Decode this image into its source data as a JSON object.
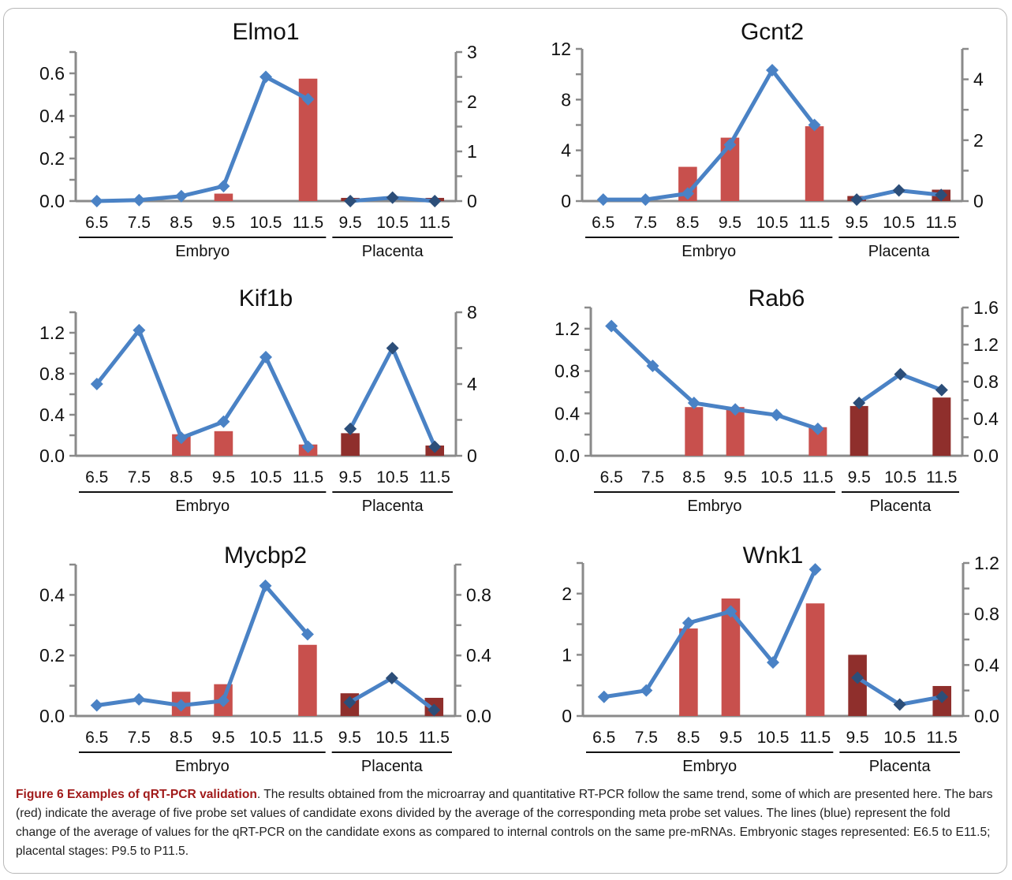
{
  "chart_data": [
    {
      "type": "bar",
      "title": "Elmo1",
      "categories": [
        "6.5",
        "7.5",
        "8.5",
        "9.5",
        "10.5",
        "11.5",
        "9.5",
        "10.5",
        "11.5"
      ],
      "groups": [
        {
          "label": "Embryo",
          "start": 0,
          "end": 5
        },
        {
          "label": "Placenta",
          "start": 6,
          "end": 8
        }
      ],
      "y_left": {
        "ylim": [
          0,
          0.7
        ],
        "ticks": [
          "0.0",
          "0.2",
          "0.4",
          "0.6"
        ],
        "tick_values": [
          0,
          0.2,
          0.4,
          0.6
        ]
      },
      "y_right": {
        "ylim": [
          0,
          3
        ],
        "ticks": [
          "0",
          "1",
          "2",
          "3"
        ],
        "tick_values": [
          0,
          1,
          2,
          3
        ]
      },
      "series": [
        {
          "kind": "bar",
          "axis": "left",
          "values": [
            0,
            0,
            0,
            0.035,
            0,
            0.575,
            0.015,
            0,
            0.015
          ]
        },
        {
          "kind": "line",
          "axis": "right",
          "values": [
            0,
            0.02,
            0.1,
            0.3,
            2.5,
            2.05,
            0,
            0.07,
            0
          ]
        }
      ]
    },
    {
      "type": "bar",
      "title": "Gcnt2",
      "categories": [
        "6.5",
        "7.5",
        "8.5",
        "9.5",
        "10.5",
        "11.5",
        "9.5",
        "10.5",
        "11.5"
      ],
      "groups": [
        {
          "label": "Embryo",
          "start": 0,
          "end": 5
        },
        {
          "label": "Placenta",
          "start": 6,
          "end": 8
        }
      ],
      "y_left": {
        "ylim": [
          0,
          12
        ],
        "ticks": [
          "0",
          "4",
          "8",
          "12"
        ],
        "tick_values": [
          0,
          4,
          8,
          12
        ]
      },
      "y_right": {
        "ylim": [
          0,
          5
        ],
        "ticks": [
          "0",
          "2",
          "4"
        ],
        "tick_values": [
          0,
          2,
          4
        ]
      },
      "series": [
        {
          "kind": "bar",
          "axis": "left",
          "values": [
            0,
            0,
            2.7,
            5.0,
            0,
            5.9,
            0.4,
            0,
            0.9
          ]
        },
        {
          "kind": "line",
          "axis": "right",
          "values": [
            0.05,
            0.05,
            0.25,
            1.85,
            4.3,
            2.5,
            0.05,
            0.35,
            0.2
          ]
        }
      ]
    },
    {
      "type": "bar",
      "title": "Kif1b",
      "categories": [
        "6.5",
        "7.5",
        "8.5",
        "9.5",
        "10.5",
        "11.5",
        "9.5",
        "10.5",
        "11.5"
      ],
      "groups": [
        {
          "label": "Embryo",
          "start": 0,
          "end": 5
        },
        {
          "label": "Placenta",
          "start": 6,
          "end": 8
        }
      ],
      "y_left": {
        "ylim": [
          0,
          1.4
        ],
        "ticks": [
          "0.0",
          "0.4",
          "0.8",
          "1.2"
        ],
        "tick_values": [
          0,
          0.4,
          0.8,
          1.2
        ]
      },
      "y_right": {
        "ylim": [
          0,
          8
        ],
        "ticks": [
          "0",
          "4",
          "8"
        ],
        "tick_values": [
          0,
          4,
          8
        ]
      },
      "series": [
        {
          "kind": "bar",
          "axis": "left",
          "values": [
            0,
            0,
            0.21,
            0.24,
            0,
            0.11,
            0.22,
            0,
            0.1
          ]
        },
        {
          "kind": "line",
          "axis": "right",
          "values": [
            4.0,
            7.0,
            1.0,
            1.9,
            5.5,
            0.5,
            1.5,
            6.0,
            0.5
          ]
        }
      ]
    },
    {
      "type": "bar",
      "title": "Rab6",
      "categories": [
        "6.5",
        "7.5",
        "8.5",
        "9.5",
        "10.5",
        "11.5",
        "9.5",
        "10.5",
        "11.5"
      ],
      "groups": [
        {
          "label": "Embryo",
          "start": 0,
          "end": 5
        },
        {
          "label": "Placenta",
          "start": 6,
          "end": 8
        }
      ],
      "y_left": {
        "ylim": [
          0,
          1.4
        ],
        "ticks": [
          "0.0",
          "0.4",
          "0.8",
          "1.2"
        ],
        "tick_values": [
          0,
          0.4,
          0.8,
          1.2
        ]
      },
      "y_right": {
        "ylim": [
          0,
          1.6
        ],
        "ticks": [
          "0.0",
          "0.4",
          "0.8",
          "1.2",
          "1.6"
        ],
        "tick_values": [
          0,
          0.4,
          0.8,
          1.2,
          1.6
        ]
      },
      "series": [
        {
          "kind": "bar",
          "axis": "left",
          "values": [
            0,
            0,
            0.46,
            0.46,
            0,
            0.27,
            0.47,
            0,
            0.55
          ]
        },
        {
          "kind": "line",
          "axis": "right",
          "values": [
            1.4,
            0.97,
            0.57,
            0.5,
            0.44,
            0.29,
            0.57,
            0.88,
            0.71
          ]
        }
      ]
    },
    {
      "type": "bar",
      "title": "Mycbp2",
      "categories": [
        "6.5",
        "7.5",
        "8.5",
        "9.5",
        "10.5",
        "11.5",
        "9.5",
        "10.5",
        "11.5"
      ],
      "groups": [
        {
          "label": "Embryo",
          "start": 0,
          "end": 5
        },
        {
          "label": "Placenta",
          "start": 6,
          "end": 8
        }
      ],
      "y_left": {
        "ylim": [
          0,
          0.5
        ],
        "ticks": [
          "0.0",
          "0.2",
          "0.4"
        ],
        "tick_values": [
          0,
          0.2,
          0.4
        ]
      },
      "y_right": {
        "ylim": [
          0,
          1.0
        ],
        "ticks": [
          "0.0",
          "0.4",
          "0.8"
        ],
        "tick_values": [
          0,
          0.4,
          0.8
        ]
      },
      "series": [
        {
          "kind": "bar",
          "axis": "left",
          "values": [
            0,
            0,
            0.08,
            0.105,
            0,
            0.235,
            0.075,
            0,
            0.06
          ]
        },
        {
          "kind": "line",
          "axis": "right",
          "values": [
            0.07,
            0.11,
            0.07,
            0.1,
            0.86,
            0.54,
            0.09,
            0.25,
            0.04
          ]
        }
      ]
    },
    {
      "type": "bar",
      "title": "Wnk1",
      "categories": [
        "6.5",
        "7.5",
        "8.5",
        "9.5",
        "10.5",
        "11.5",
        "9.5",
        "10.5",
        "11.5"
      ],
      "groups": [
        {
          "label": "Embryo",
          "start": 0,
          "end": 5
        },
        {
          "label": "Placenta",
          "start": 6,
          "end": 8
        }
      ],
      "y_left": {
        "ylim": [
          0,
          2.5
        ],
        "ticks": [
          "0",
          "1",
          "2"
        ],
        "tick_values": [
          0,
          1,
          2
        ]
      },
      "y_right": {
        "ylim": [
          0,
          1.2
        ],
        "ticks": [
          "0.0",
          "0.4",
          "0.8",
          "1.2"
        ],
        "tick_values": [
          0,
          0.4,
          0.8,
          1.2
        ]
      },
      "series": [
        {
          "kind": "bar",
          "axis": "left",
          "values": [
            0,
            0,
            1.43,
            1.92,
            0,
            1.84,
            1.0,
            0,
            0.49
          ]
        },
        {
          "kind": "line",
          "axis": "right",
          "values": [
            0.15,
            0.2,
            0.73,
            0.82,
            0.42,
            1.15,
            0.3,
            0.09,
            0.15
          ]
        }
      ]
    }
  ],
  "colors": {
    "bar_embryo": "#c8504d",
    "bar_placenta": "#8f2f2c",
    "line": "#4a82c5",
    "marker_embryo": "#4a82c5",
    "marker_placenta": "#2c4e79",
    "axis": "#8a8a8a"
  },
  "caption": {
    "bold": "Figure 6 Examples of qRT-PCR validation",
    "text": ". The results obtained from the microarray and quantitative RT-PCR follow the same trend, some of which are presented here. The bars (red) indicate the average of five probe set values of candidate exons divided by the average of the corresponding meta probe set values. The lines (blue) represent the fold change of the average of values for the qRT-PCR on the candidate exons as compared to internal controls on the same pre-mRNAs. Embryonic stages represented: E6.5 to E11.5; placental stages: P9.5 to P11.5."
  }
}
